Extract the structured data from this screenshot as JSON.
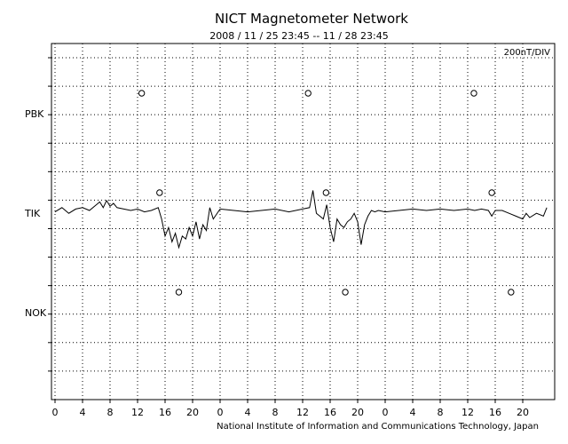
{
  "chart_data": {
    "type": "line",
    "title": "NICT Magnetometer Network",
    "subtitle": "2008 / 11 / 25   23:45 -- 11 / 28   23:45",
    "scale_label": "200nT/DIV",
    "footer": "National Institute of Information and Communications Technology, Japan",
    "grid": true,
    "x_range_hours": [
      0,
      72
    ],
    "x_ticks": [
      {
        "hour": 0,
        "label": "0"
      },
      {
        "hour": 4,
        "label": "4"
      },
      {
        "hour": 8,
        "label": "8"
      },
      {
        "hour": 12,
        "label": "12"
      },
      {
        "hour": 16,
        "label": "16"
      },
      {
        "hour": 20,
        "label": "20"
      },
      {
        "hour": 24,
        "label": "0"
      },
      {
        "hour": 28,
        "label": "4"
      },
      {
        "hour": 32,
        "label": "8"
      },
      {
        "hour": 36,
        "label": "12"
      },
      {
        "hour": 40,
        "label": "16"
      },
      {
        "hour": 44,
        "label": "20"
      },
      {
        "hour": 48,
        "label": "0"
      },
      {
        "hour": 52,
        "label": "4"
      },
      {
        "hour": 56,
        "label": "8"
      },
      {
        "hour": 60,
        "label": "12"
      },
      {
        "hour": 64,
        "label": "16"
      },
      {
        "hour": 68,
        "label": "20"
      }
    ],
    "stations": [
      {
        "name": "PBK",
        "markers_hour": [
          12.6,
          36.8,
          60.9
        ]
      },
      {
        "name": "TIK",
        "markers_hour": [
          15.2,
          39.4,
          63.5
        ]
      },
      {
        "name": "NOK",
        "markers_hour": [
          18.0,
          42.2,
          66.3
        ]
      }
    ],
    "series": [
      {
        "name": "TIK",
        "x": [
          0,
          1,
          2,
          3,
          4,
          5,
          6,
          6.5,
          7,
          7.5,
          8,
          8.5,
          9,
          10,
          11,
          12,
          13,
          14,
          15,
          15.5,
          16,
          16.5,
          17,
          17.5,
          18,
          18.5,
          19,
          19.5,
          20,
          20.5,
          21,
          21.5,
          22,
          22.5,
          23,
          24,
          26,
          28,
          30,
          32,
          34,
          36,
          37,
          37.5,
          38,
          38.5,
          39,
          39.5,
          40,
          40.5,
          41,
          41.5,
          42,
          42.5,
          43,
          43.5,
          44,
          44.5,
          45,
          45.5,
          46,
          46.5,
          47,
          48,
          50,
          52,
          54,
          56,
          58,
          60,
          61,
          62,
          63,
          63.5,
          64,
          65,
          66,
          67,
          68,
          68.5,
          69,
          70,
          71,
          71.5
        ],
        "values": [
          -0.05,
          0.1,
          -0.1,
          0.05,
          0.1,
          0.0,
          0.2,
          0.3,
          0.1,
          0.35,
          0.15,
          0.25,
          0.1,
          0.05,
          0.0,
          0.05,
          -0.05,
          0.0,
          0.1,
          -0.3,
          -0.9,
          -0.6,
          -1.1,
          -0.8,
          -1.3,
          -0.9,
          -1.0,
          -0.6,
          -0.9,
          -0.4,
          -1.0,
          -0.5,
          -0.7,
          0.1,
          -0.3,
          0.05,
          0.0,
          -0.05,
          0.0,
          0.05,
          -0.05,
          0.05,
          0.1,
          0.7,
          -0.1,
          -0.2,
          -0.3,
          0.2,
          -0.6,
          -1.1,
          -0.3,
          -0.5,
          -0.6,
          -0.4,
          -0.3,
          -0.1,
          -0.4,
          -1.2,
          -0.5,
          -0.2,
          0.0,
          -0.05,
          0.0,
          -0.05,
          0.0,
          0.05,
          0.0,
          0.05,
          0.0,
          0.05,
          0.0,
          0.05,
          0.0,
          -0.2,
          0.0,
          0.0,
          -0.1,
          -0.2,
          -0.3,
          -0.1,
          -0.25,
          -0.1,
          -0.2,
          0.1
        ]
      }
    ]
  }
}
